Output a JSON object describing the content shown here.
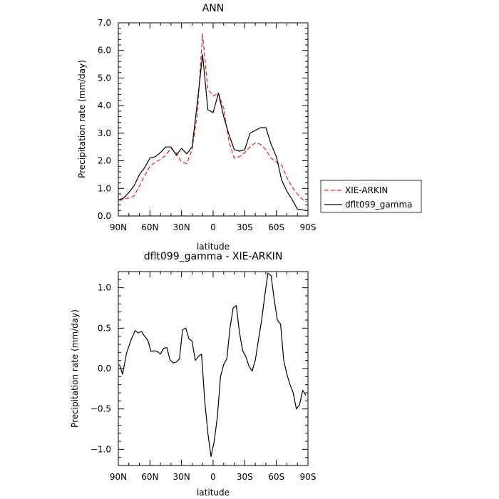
{
  "chart_data": [
    {
      "type": "line",
      "title": "ANN",
      "xlabel": "latitude",
      "ylabel": "Precipitation rate (mm/day)",
      "xlim": [
        90,
        -90
      ],
      "ylim": [
        0,
        7
      ],
      "x_ticks": [
        90,
        60,
        30,
        0,
        -30,
        -60,
        -90
      ],
      "x_tick_labels": [
        "90N",
        "60N",
        "30N",
        "0",
        "30S",
        "60S",
        "90S"
      ],
      "y_ticks": [
        0,
        1,
        2,
        3,
        4,
        5,
        6,
        7
      ],
      "y_tick_labels": [
        "0.0",
        "1.0",
        "2.0",
        "3.0",
        "4.0",
        "5.0",
        "6.0",
        "7.0"
      ],
      "legend_position": "outside-right",
      "series": [
        {
          "name": "XIE-ARKIN",
          "color": "#e8231f",
          "dash": "dashed",
          "x": [
            89,
            85,
            80,
            75,
            70,
            65,
            60,
            55,
            50,
            45,
            40,
            35,
            30,
            25,
            20,
            15,
            10,
            5,
            0,
            -5,
            -10,
            -15,
            -20,
            -25,
            -30,
            -35,
            -40,
            -45,
            -50,
            -55,
            -60,
            -65,
            -70,
            -75,
            -80,
            -85,
            -89
          ],
          "y": [
            0.55,
            0.62,
            0.65,
            0.72,
            1.1,
            1.45,
            1.8,
            1.95,
            2.05,
            2.2,
            2.45,
            2.28,
            1.95,
            1.9,
            2.4,
            3.7,
            6.6,
            4.6,
            4.35,
            4.45,
            3.9,
            2.7,
            2.1,
            2.15,
            2.3,
            2.5,
            2.65,
            2.6,
            2.4,
            2.1,
            1.95,
            1.85,
            1.4,
            1.05,
            0.8,
            0.6,
            0.52
          ]
        },
        {
          "name": "dflt099_gamma",
          "color": "#000000",
          "dash": "solid",
          "x": [
            89,
            85,
            80,
            75,
            70,
            65,
            60,
            55,
            50,
            45,
            40,
            35,
            30,
            25,
            20,
            15,
            10,
            5,
            0,
            -5,
            -10,
            -15,
            -20,
            -25,
            -30,
            -35,
            -40,
            -45,
            -50,
            -55,
            -60,
            -65,
            -70,
            -75,
            -80,
            -85,
            -89
          ],
          "y": [
            0.6,
            0.65,
            0.85,
            1.1,
            1.5,
            1.75,
            2.1,
            2.15,
            2.3,
            2.5,
            2.5,
            2.2,
            2.45,
            2.25,
            2.5,
            4.1,
            5.85,
            3.85,
            3.75,
            4.45,
            3.6,
            2.95,
            2.4,
            2.35,
            2.4,
            3.0,
            3.1,
            3.2,
            3.2,
            2.6,
            2.15,
            1.3,
            0.9,
            0.6,
            0.25,
            0.22,
            0.2
          ]
        }
      ]
    },
    {
      "type": "line",
      "title": "dflt099_gamma - XIE-ARKIN",
      "xlabel": "latitude",
      "ylabel": "Precipitation rate (mm/day)",
      "xlim": [
        90,
        -90
      ],
      "ylim": [
        -1.2,
        1.2
      ],
      "x_ticks": [
        90,
        60,
        30,
        0,
        -30,
        -60,
        -90
      ],
      "x_tick_labels": [
        "90N",
        "60N",
        "30N",
        "0",
        "30S",
        "60S",
        "90S"
      ],
      "y_ticks": [
        -1.0,
        -0.5,
        0.0,
        0.5,
        1.0
      ],
      "y_tick_labels": [
        "−1.0",
        "−0.5",
        "0.0",
        "0.5",
        "1.0"
      ],
      "series": [
        {
          "color": "#000000",
          "dash": "solid",
          "x": [
            89,
            86,
            82,
            78,
            74,
            71,
            68,
            65,
            62,
            59,
            56,
            53,
            50,
            47,
            44,
            41,
            38,
            35,
            32,
            29,
            26,
            23,
            20,
            17,
            14,
            11,
            8,
            5,
            2,
            -1,
            -4,
            -7,
            -10,
            -13,
            -16,
            -19,
            -22,
            -25,
            -28,
            -31,
            -34,
            -37,
            -40,
            -43,
            -46,
            -49,
            -52,
            -55,
            -58,
            -61,
            -64,
            -67,
            -70,
            -73,
            -76,
            -79,
            -82,
            -85,
            -88
          ],
          "y": [
            0.05,
            -0.07,
            0.2,
            0.35,
            0.47,
            0.44,
            0.46,
            0.4,
            0.35,
            0.21,
            0.22,
            0.21,
            0.18,
            0.25,
            0.26,
            0.11,
            0.07,
            0.08,
            0.12,
            0.48,
            0.5,
            0.37,
            0.34,
            0.1,
            0.15,
            0.18,
            -0.4,
            -0.8,
            -1.09,
            -0.9,
            -0.6,
            -0.1,
            0.05,
            0.12,
            0.5,
            0.75,
            0.78,
            0.45,
            0.22,
            0.15,
            0.03,
            -0.03,
            0.1,
            0.35,
            0.6,
            0.9,
            1.18,
            1.15,
            0.85,
            0.6,
            0.55,
            0.1,
            -0.07,
            -0.2,
            -0.3,
            -0.5,
            -0.45,
            -0.27,
            -0.33
          ]
        }
      ]
    }
  ]
}
